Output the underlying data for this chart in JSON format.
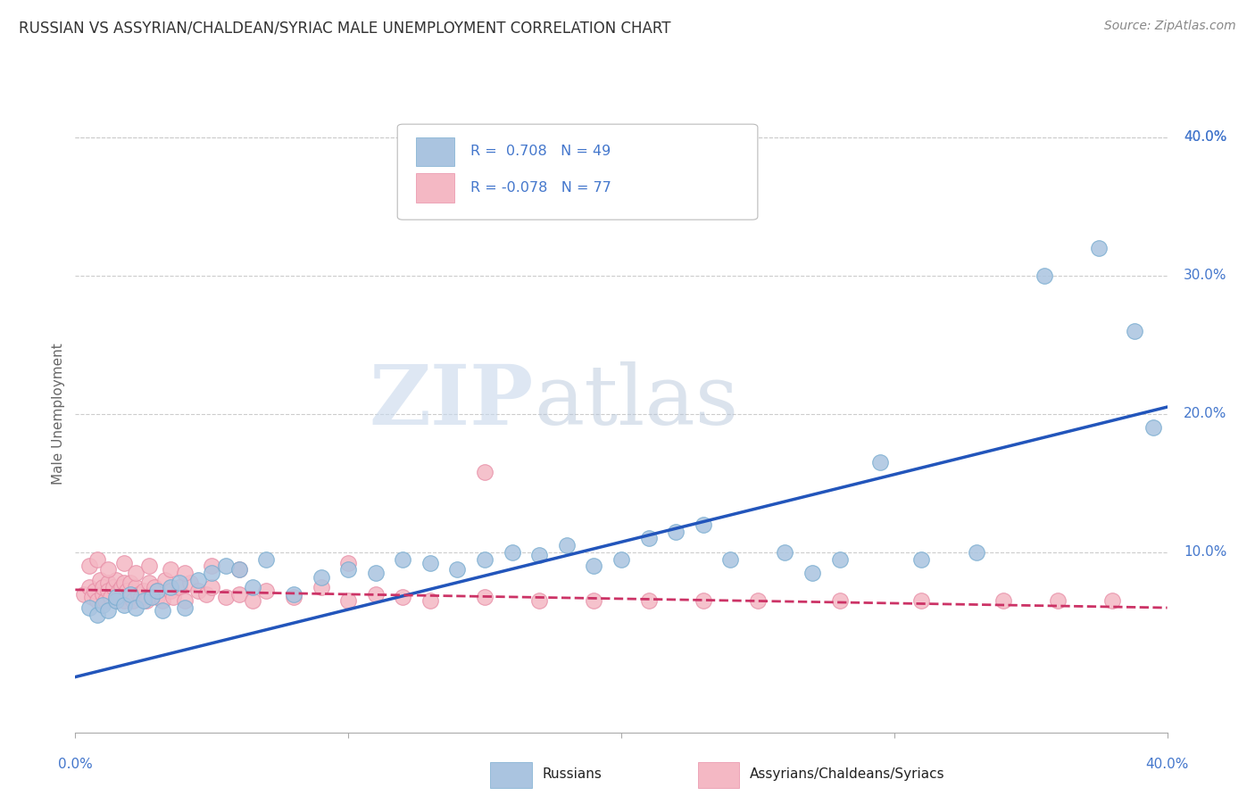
{
  "title": "RUSSIAN VS ASSYRIAN/CHALDEAN/SYRIAC MALE UNEMPLOYMENT CORRELATION CHART",
  "source": "Source: ZipAtlas.com",
  "ylabel": "Male Unemployment",
  "right_yticks": [
    "40.0%",
    "30.0%",
    "20.0%",
    "10.0%"
  ],
  "right_ytick_vals": [
    0.4,
    0.3,
    0.2,
    0.1
  ],
  "xlim": [
    0.0,
    0.4
  ],
  "ylim": [
    -0.03,
    0.43
  ],
  "legend_r_blue": "0.708",
  "legend_n_blue": "49",
  "legend_r_pink": "-0.078",
  "legend_n_pink": "77",
  "series_blue_label": "Russians",
  "series_pink_label": "Assyrians/Chaldeans/Syriacs",
  "blue_color": "#aac4e0",
  "pink_color": "#f4b8c4",
  "blue_edge_color": "#7aadd0",
  "pink_edge_color": "#e890a8",
  "blue_line_color": "#2255bb",
  "pink_line_color": "#cc3366",
  "watermark_zip": "ZIP",
  "watermark_atlas": "atlas",
  "background_color": "#ffffff",
  "grid_color": "#cccccc",
  "title_color": "#333333",
  "axis_label_color": "#4477CC",
  "legend_text_color": "#222222",
  "blue_trend_y_start": 0.01,
  "blue_trend_y_end": 0.205,
  "pink_trend_y_start": 0.073,
  "pink_trend_y_end": 0.06,
  "blue_scatter_x": [
    0.005,
    0.008,
    0.01,
    0.012,
    0.015,
    0.015,
    0.018,
    0.02,
    0.022,
    0.025,
    0.028,
    0.03,
    0.032,
    0.035,
    0.038,
    0.04,
    0.045,
    0.05,
    0.055,
    0.06,
    0.065,
    0.07,
    0.08,
    0.09,
    0.1,
    0.11,
    0.12,
    0.13,
    0.14,
    0.15,
    0.16,
    0.17,
    0.18,
    0.19,
    0.2,
    0.21,
    0.22,
    0.23,
    0.24,
    0.26,
    0.27,
    0.28,
    0.295,
    0.31,
    0.33,
    0.355,
    0.375,
    0.388,
    0.395
  ],
  "blue_scatter_y": [
    0.06,
    0.055,
    0.062,
    0.058,
    0.065,
    0.068,
    0.062,
    0.07,
    0.06,
    0.065,
    0.068,
    0.072,
    0.058,
    0.075,
    0.078,
    0.06,
    0.08,
    0.085,
    0.09,
    0.088,
    0.075,
    0.095,
    0.07,
    0.082,
    0.088,
    0.085,
    0.095,
    0.092,
    0.088,
    0.095,
    0.1,
    0.098,
    0.105,
    0.09,
    0.095,
    0.11,
    0.115,
    0.12,
    0.095,
    0.1,
    0.085,
    0.095,
    0.165,
    0.095,
    0.1,
    0.3,
    0.32,
    0.26,
    0.19
  ],
  "pink_scatter_x": [
    0.003,
    0.005,
    0.006,
    0.007,
    0.008,
    0.009,
    0.01,
    0.01,
    0.011,
    0.012,
    0.012,
    0.013,
    0.014,
    0.015,
    0.015,
    0.016,
    0.017,
    0.017,
    0.018,
    0.018,
    0.019,
    0.02,
    0.02,
    0.021,
    0.022,
    0.023,
    0.024,
    0.025,
    0.026,
    0.027,
    0.028,
    0.029,
    0.03,
    0.03,
    0.032,
    0.033,
    0.035,
    0.036,
    0.038,
    0.04,
    0.042,
    0.045,
    0.048,
    0.05,
    0.055,
    0.06,
    0.065,
    0.07,
    0.08,
    0.09,
    0.1,
    0.11,
    0.12,
    0.13,
    0.15,
    0.17,
    0.19,
    0.21,
    0.23,
    0.25,
    0.28,
    0.31,
    0.34,
    0.36,
    0.38,
    0.005,
    0.008,
    0.012,
    0.018,
    0.022,
    0.027,
    0.035,
    0.04,
    0.05,
    0.06,
    0.1,
    0.15
  ],
  "pink_scatter_y": [
    0.07,
    0.075,
    0.068,
    0.072,
    0.065,
    0.08,
    0.07,
    0.075,
    0.065,
    0.078,
    0.072,
    0.068,
    0.075,
    0.065,
    0.08,
    0.072,
    0.068,
    0.075,
    0.065,
    0.078,
    0.072,
    0.068,
    0.078,
    0.065,
    0.075,
    0.07,
    0.068,
    0.072,
    0.065,
    0.078,
    0.07,
    0.075,
    0.068,
    0.072,
    0.065,
    0.08,
    0.072,
    0.068,
    0.075,
    0.065,
    0.078,
    0.072,
    0.07,
    0.075,
    0.068,
    0.07,
    0.065,
    0.072,
    0.068,
    0.075,
    0.065,
    0.07,
    0.068,
    0.065,
    0.068,
    0.065,
    0.065,
    0.065,
    0.065,
    0.065,
    0.065,
    0.065,
    0.065,
    0.065,
    0.065,
    0.09,
    0.095,
    0.088,
    0.092,
    0.085,
    0.09,
    0.088,
    0.085,
    0.09,
    0.088,
    0.092,
    0.158
  ]
}
